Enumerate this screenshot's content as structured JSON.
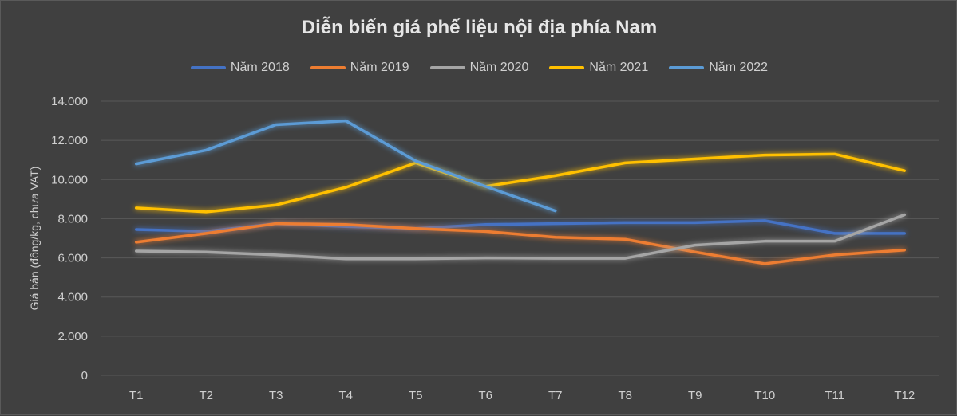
{
  "chart_data": {
    "type": "line",
    "title": "Diễn biến giá phế liệu nội địa phía Nam",
    "ylabel": "Giá bán (đồng/kg, chưa VAT)",
    "xlabel": "",
    "categories": [
      "T1",
      "T2",
      "T3",
      "T4",
      "T5",
      "T6",
      "T7",
      "T8",
      "T9",
      "T10",
      "T11",
      "T12"
    ],
    "ylim": [
      0,
      14000
    ],
    "yticks": [
      0,
      2000,
      4000,
      6000,
      8000,
      10000,
      12000,
      14000
    ],
    "ytick_labels": [
      "0",
      "2.000",
      "4.000",
      "6.000",
      "8.000",
      "10.000",
      "12.000",
      "14.000"
    ],
    "grid": "horizontal",
    "legend_position": "top",
    "series": [
      {
        "name": "Năm 2018",
        "color": "#4472C4",
        "values": [
          7450,
          7350,
          7750,
          7600,
          7500,
          7700,
          7750,
          7800,
          7800,
          7900,
          7250,
          7250
        ]
      },
      {
        "name": "Năm 2019",
        "color": "#ED7D31",
        "values": [
          6800,
          7250,
          7750,
          7700,
          7500,
          7350,
          7050,
          6950,
          6300,
          5700,
          6150,
          6400
        ]
      },
      {
        "name": "Năm 2020",
        "color": "#A5A5A5",
        "values": [
          6350,
          6300,
          6150,
          5950,
          5950,
          6000,
          5980,
          5980,
          6650,
          6850,
          6850,
          8200
        ]
      },
      {
        "name": "Năm 2021",
        "color": "#FFC000",
        "values": [
          8550,
          8350,
          8700,
          9600,
          10850,
          9650,
          10200,
          10850,
          11050,
          11250,
          11300,
          10450
        ]
      },
      {
        "name": "Năm 2022",
        "color": "#5B9BD5",
        "values": [
          10800,
          11500,
          12800,
          13000,
          10950,
          9650,
          8400,
          null,
          null,
          null,
          null,
          null
        ]
      }
    ]
  }
}
